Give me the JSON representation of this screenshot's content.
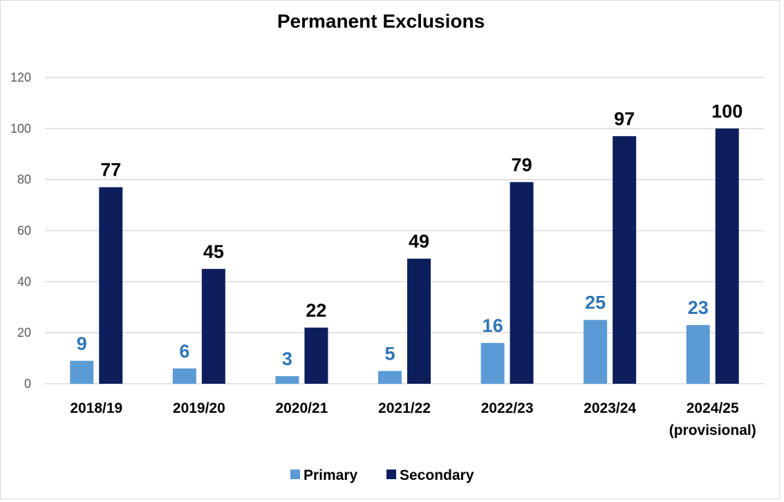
{
  "chart_data": {
    "type": "bar",
    "title": "Permanent Exclusions",
    "xlabel": "",
    "ylabel": "",
    "categories": [
      [
        "2018/19"
      ],
      [
        "2019/20"
      ],
      [
        "2020/21"
      ],
      [
        "2021/22"
      ],
      [
        "2022/23"
      ],
      [
        "2023/24"
      ],
      [
        "2024/25",
        "(provisional)"
      ]
    ],
    "series": [
      {
        "name": "Primary",
        "color": "#5b9bd5",
        "label_color": "#2e75b6",
        "values": [
          9,
          6,
          3,
          5,
          16,
          25,
          23
        ]
      },
      {
        "name": "Secondary",
        "color": "#0c1f5c",
        "label_color": "#000000",
        "values": [
          77,
          45,
          22,
          49,
          79,
          97,
          100
        ]
      }
    ],
    "ylim": [
      0,
      120
    ],
    "yticks": [
      0,
      20,
      40,
      60,
      80,
      100,
      120
    ],
    "grid": true,
    "legend": "bottom",
    "data_labels": true
  }
}
